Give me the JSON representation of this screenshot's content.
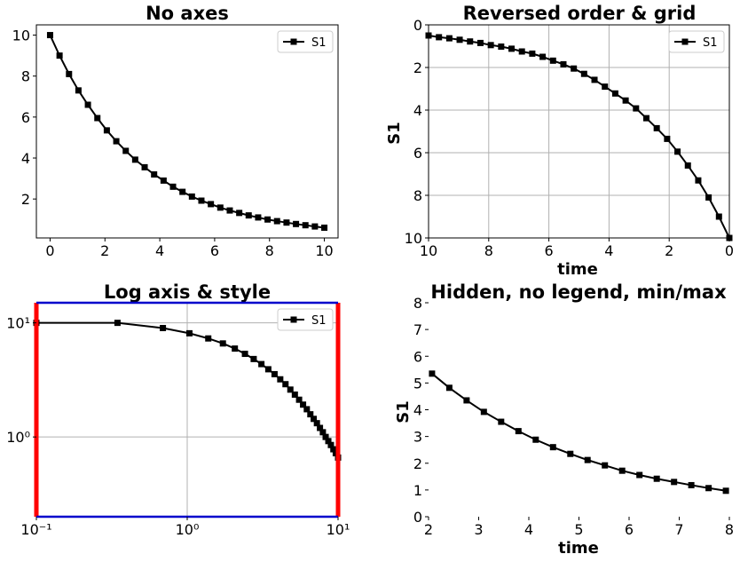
{
  "chart_data": [
    {
      "type": "line",
      "title": "No axes",
      "xlabel": "",
      "ylabel": "",
      "xlim": [
        -0.5,
        10.5
      ],
      "ylim": [
        0.1,
        10.5
      ],
      "xticks": [
        0,
        2,
        4,
        6,
        8,
        10
      ],
      "xtick_labels": [
        "0",
        "2",
        "4",
        "6",
        "8",
        "10"
      ],
      "yticks": [
        2,
        4,
        6,
        8,
        10
      ],
      "ytick_labels": [
        "2",
        "4",
        "6",
        "8",
        "10"
      ],
      "grid": false,
      "legend": "top-right",
      "series": [
        {
          "name": "S1",
          "color": "#000000",
          "marker": "square",
          "x": [
            0,
            0.345,
            0.69,
            1.034,
            1.379,
            1.724,
            2.069,
            2.414,
            2.759,
            3.103,
            3.448,
            3.793,
            4.138,
            4.483,
            4.828,
            5.172,
            5.517,
            5.862,
            6.207,
            6.552,
            6.897,
            7.241,
            7.586,
            7.931,
            8.276,
            8.621,
            8.966,
            9.31,
            9.655,
            10
          ],
          "y": [
            10,
            9.0,
            8.1,
            7.3,
            6.6,
            5.95,
            5.35,
            4.82,
            4.35,
            3.92,
            3.55,
            3.2,
            2.9,
            2.6,
            2.35,
            2.12,
            1.92,
            1.75,
            1.58,
            1.44,
            1.32,
            1.2,
            1.1,
            1.0,
            0.92,
            0.85,
            0.78,
            0.72,
            0.66,
            0.6
          ]
        }
      ]
    },
    {
      "type": "line",
      "title": "Reversed order & grid",
      "xlabel": "time",
      "ylabel": "S1",
      "xlim": [
        10,
        0
      ],
      "ylim": [
        10,
        0
      ],
      "xticks": [
        10,
        8,
        6,
        4,
        2,
        0
      ],
      "xtick_labels": [
        "10",
        "8",
        "6",
        "4",
        "2",
        "0"
      ],
      "yticks": [
        0,
        2,
        4,
        6,
        8,
        10
      ],
      "ytick_labels": [
        "0",
        "2",
        "4",
        "6",
        "8",
        "10"
      ],
      "grid": true,
      "legend": "top-right",
      "series": [
        {
          "name": "S1",
          "color": "#000000",
          "marker": "square",
          "x": [
            10,
            9.655,
            9.31,
            8.966,
            8.621,
            8.276,
            7.931,
            7.586,
            7.241,
            6.897,
            6.552,
            6.207,
            5.862,
            5.517,
            5.172,
            4.828,
            4.483,
            4.138,
            3.793,
            3.448,
            3.103,
            2.759,
            2.414,
            2.069,
            1.724,
            1.379,
            1.034,
            0.69,
            0.345,
            0
          ],
          "y": [
            0.5,
            0.58,
            0.63,
            0.7,
            0.78,
            0.85,
            0.95,
            1.02,
            1.12,
            1.25,
            1.35,
            1.5,
            1.68,
            1.85,
            2.05,
            2.3,
            2.58,
            2.9,
            3.22,
            3.55,
            3.92,
            4.38,
            4.85,
            5.35,
            5.95,
            6.6,
            7.3,
            8.1,
            9.0,
            10
          ]
        }
      ]
    },
    {
      "type": "line",
      "title": "Log axis & style",
      "xlabel": "",
      "ylabel": "",
      "xscale": "log",
      "yscale": "log",
      "xlim": [
        0.1,
        10
      ],
      "ylim": [
        0.2,
        15
      ],
      "xticks": [
        0.1,
        1,
        10
      ],
      "xtick_labels": [
        "10⁻¹",
        "10⁰",
        "10¹"
      ],
      "yticks": [
        1,
        10
      ],
      "ytick_labels": [
        "10⁰",
        "10¹"
      ],
      "grid": true,
      "legend": "top-right",
      "frame_colors": {
        "left": "#ff0000",
        "right": "#ff0000",
        "top": "#0000cc",
        "bottom": "#0000cc"
      },
      "series": [
        {
          "name": "S1",
          "color": "#000000",
          "marker": "square",
          "x": [
            0.1,
            0.345,
            0.69,
            1.034,
            1.379,
            1.724,
            2.069,
            2.414,
            2.759,
            3.103,
            3.448,
            3.793,
            4.138,
            4.483,
            4.828,
            5.172,
            5.517,
            5.862,
            6.207,
            6.552,
            6.897,
            7.241,
            7.586,
            7.931,
            8.276,
            8.621,
            8.966,
            9.31,
            9.655,
            10
          ],
          "y": [
            10,
            10,
            9.0,
            8.1,
            7.3,
            6.6,
            5.95,
            5.35,
            4.82,
            4.35,
            3.92,
            3.55,
            3.2,
            2.9,
            2.6,
            2.35,
            2.12,
            1.92,
            1.75,
            1.58,
            1.44,
            1.32,
            1.2,
            1.1,
            1.0,
            0.92,
            0.85,
            0.78,
            0.72,
            0.66
          ]
        }
      ]
    },
    {
      "type": "line",
      "title": "Hidden, no legend, min/max",
      "xlabel": "time",
      "ylabel": "S1",
      "xlim": [
        2,
        8
      ],
      "ylim": [
        0,
        8
      ],
      "xticks": [
        2,
        3,
        4,
        5,
        6,
        7,
        8
      ],
      "xtick_labels": [
        "2",
        "3",
        "4",
        "5",
        "6",
        "7",
        "8"
      ],
      "yticks": [
        0,
        1,
        2,
        3,
        4,
        5,
        6,
        7,
        8
      ],
      "ytick_labels": [
        "0",
        "1",
        "2",
        "3",
        "4",
        "5",
        "6",
        "7",
        "8"
      ],
      "grid": false,
      "legend": "none",
      "series": [
        {
          "name": "",
          "color": "#000000",
          "marker": "square",
          "x": [
            2.069,
            2.414,
            2.759,
            3.103,
            3.448,
            3.793,
            4.138,
            4.483,
            4.828,
            5.172,
            5.517,
            5.862,
            6.207,
            6.552,
            6.897,
            7.241,
            7.586,
            7.931
          ],
          "y": [
            5.35,
            4.82,
            4.35,
            3.92,
            3.55,
            3.2,
            2.88,
            2.6,
            2.35,
            2.12,
            1.92,
            1.72,
            1.56,
            1.42,
            1.3,
            1.18,
            1.07,
            0.97
          ]
        }
      ]
    }
  ]
}
